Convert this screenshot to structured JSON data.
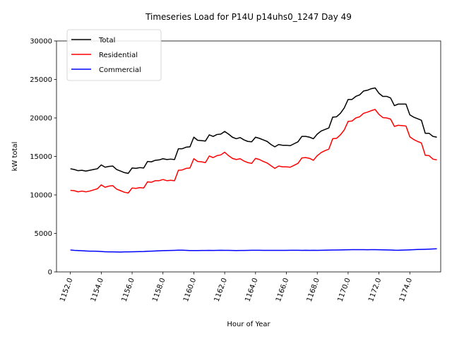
{
  "chart_data": {
    "type": "line",
    "title": "Timeseries Load for P14U p14uhs0_1247  Day 49",
    "xlabel": "Hour of Year",
    "ylabel": "kW total",
    "xlim": [
      1151.1,
      1176.0
    ],
    "ylim": [
      0,
      30000
    ],
    "x_ticks": [
      1152,
      1154,
      1156,
      1158,
      1160,
      1162,
      1164,
      1166,
      1168,
      1170,
      1172,
      1174
    ],
    "x_tick_labels": [
      "1152.0",
      "1154.0",
      "1156.0",
      "1158.0",
      "1160.0",
      "1162.0",
      "1164.0",
      "1166.0",
      "1168.0",
      "1170.0",
      "1172.0",
      "1174.0"
    ],
    "y_ticks": [
      0,
      5000,
      10000,
      15000,
      20000,
      25000,
      30000
    ],
    "y_tick_labels": [
      "0",
      "5000",
      "10000",
      "15000",
      "20000",
      "25000",
      "30000"
    ],
    "legend_position": "top-left",
    "grid": false,
    "x_start": 1152.0,
    "x_step": 0.25,
    "series": [
      {
        "name": "Total",
        "color": "#000000",
        "values": [
          13400,
          13300,
          13150,
          13200,
          13100,
          13200,
          13300,
          13400,
          13900,
          13600,
          13700,
          13750,
          13300,
          13100,
          12900,
          12800,
          13500,
          13450,
          13550,
          13500,
          14350,
          14300,
          14500,
          14550,
          14700,
          14600,
          14650,
          14600,
          16000,
          16000,
          16200,
          16250,
          17500,
          17100,
          17050,
          17000,
          17800,
          17600,
          17850,
          17900,
          18250,
          17900,
          17500,
          17300,
          17450,
          17150,
          16950,
          16900,
          17500,
          17350,
          17150,
          16950,
          16550,
          16250,
          16550,
          16450,
          16450,
          16400,
          16650,
          16900,
          17600,
          17600,
          17500,
          17300,
          17900,
          18300,
          18500,
          18700,
          20100,
          20150,
          20600,
          21300,
          22400,
          22400,
          22800,
          23000,
          23500,
          23600,
          23800,
          23900,
          23200,
          22800,
          22800,
          22600,
          21600,
          21800,
          21800,
          21800,
          20400,
          20100,
          19900,
          19700,
          18000,
          18000,
          17600,
          17500
        ]
      },
      {
        "name": "Residential",
        "color": "#ff0000",
        "values": [
          10600,
          10550,
          10400,
          10500,
          10400,
          10500,
          10650,
          10800,
          11300,
          11000,
          11150,
          11200,
          10750,
          10550,
          10350,
          10250,
          10900,
          10850,
          10950,
          10900,
          11700,
          11650,
          11850,
          11850,
          12000,
          11850,
          11900,
          11850,
          13200,
          13250,
          13450,
          13500,
          14700,
          14350,
          14300,
          14200,
          15050,
          14850,
          15100,
          15200,
          15550,
          15100,
          14750,
          14600,
          14700,
          14400,
          14200,
          14100,
          14750,
          14600,
          14350,
          14150,
          13800,
          13450,
          13750,
          13650,
          13650,
          13600,
          13850,
          14100,
          14800,
          14850,
          14750,
          14500,
          15100,
          15500,
          15750,
          15950,
          17300,
          17350,
          17800,
          18450,
          19550,
          19600,
          20000,
          20150,
          20600,
          20750,
          20950,
          21100,
          20450,
          20050,
          20000,
          19850,
          18900,
          19050,
          19000,
          18950,
          17550,
          17200,
          16950,
          16750,
          15150,
          15100,
          14650,
          14550
        ]
      },
      {
        "name": "Commercial",
        "color": "#0000ff",
        "values": [
          2850,
          2800,
          2780,
          2750,
          2720,
          2700,
          2700,
          2680,
          2650,
          2620,
          2600,
          2600,
          2590,
          2580,
          2600,
          2600,
          2620,
          2630,
          2640,
          2650,
          2680,
          2700,
          2720,
          2740,
          2760,
          2780,
          2790,
          2800,
          2820,
          2820,
          2800,
          2780,
          2780,
          2780,
          2790,
          2790,
          2800,
          2790,
          2800,
          2810,
          2800,
          2800,
          2790,
          2780,
          2790,
          2790,
          2800,
          2810,
          2810,
          2810,
          2800,
          2800,
          2800,
          2800,
          2800,
          2800,
          2800,
          2810,
          2810,
          2810,
          2800,
          2810,
          2800,
          2810,
          2800,
          2810,
          2820,
          2830,
          2840,
          2850,
          2860,
          2870,
          2880,
          2890,
          2890,
          2890,
          2890,
          2880,
          2890,
          2890,
          2880,
          2870,
          2860,
          2850,
          2820,
          2810,
          2830,
          2850,
          2870,
          2890,
          2910,
          2920,
          2940,
          2960,
          2980,
          3000
        ]
      }
    ]
  }
}
